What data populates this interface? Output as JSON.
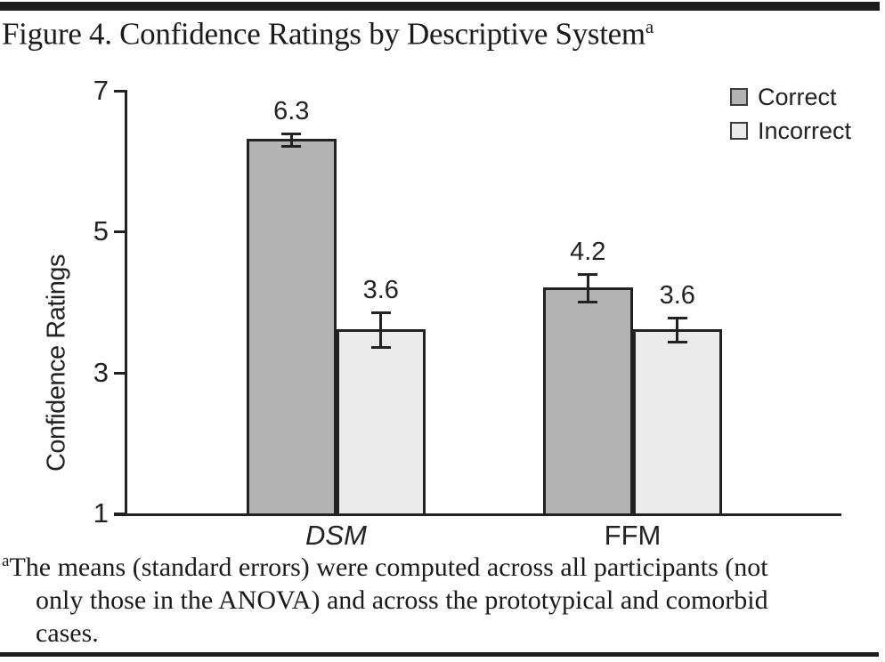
{
  "figure": {
    "title": "Figure 4. Confidence Ratings by Descriptive System",
    "title_marker": "a"
  },
  "chart_data": {
    "type": "bar",
    "categories": [
      {
        "label": "DSM",
        "italic": true
      },
      {
        "label": "FFM",
        "italic": false
      }
    ],
    "series": [
      {
        "name": "Correct",
        "color": "#b3b3b3",
        "values": [
          6.3,
          4.2
        ],
        "std_errors": [
          0.1,
          0.2
        ]
      },
      {
        "name": "Incorrect",
        "color": "#ebebeb",
        "values": [
          3.6,
          3.6
        ],
        "std_errors": [
          0.25,
          0.18
        ]
      }
    ],
    "title": "Figure 4. Confidence Ratings by Descriptive System",
    "xlabel": "",
    "ylabel": "Confidence Ratings",
    "ylim": [
      1,
      7
    ],
    "yticks": [
      "7",
      "5",
      "3",
      "1"
    ],
    "grid": false,
    "error_bars": true,
    "legend_position": "top-right"
  },
  "footnote": {
    "marker": "a",
    "lines": [
      "The means (standard errors) were computed across all participants (not",
      "only those in the ANOVA) and across the prototypical and comorbid",
      "cases."
    ]
  },
  "colors": {
    "ink": "#222222",
    "correct_fill": "#b3b3b3",
    "incorrect_fill": "#ebebeb",
    "rule": "#1c1c1c"
  }
}
